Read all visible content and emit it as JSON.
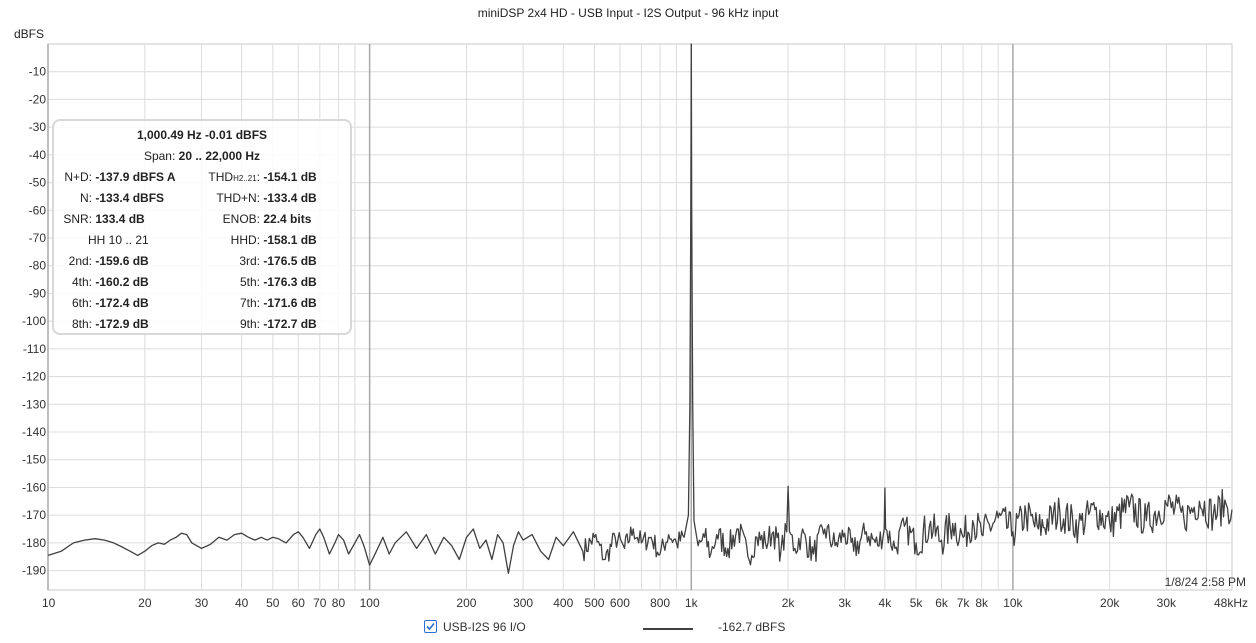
{
  "chart_data": {
    "type": "line",
    "title": "miniDSP 2x4 HD - USB Input - I2S Output - 96 kHz input",
    "ylabel": "dBFS",
    "xlabel": "",
    "x_scale": "log",
    "xlim": [
      10,
      48000
    ],
    "ylim": [
      -197,
      0
    ],
    "grid": true,
    "x_tick_labels": [
      {
        "v": 10,
        "t": "10"
      },
      {
        "v": 20,
        "t": "20"
      },
      {
        "v": 30,
        "t": "30"
      },
      {
        "v": 40,
        "t": "40"
      },
      {
        "v": 50,
        "t": "50"
      },
      {
        "v": 60,
        "t": "60"
      },
      {
        "v": 70,
        "t": "70"
      },
      {
        "v": 80,
        "t": "80"
      },
      {
        "v": 100,
        "t": "100"
      },
      {
        "v": 200,
        "t": "200"
      },
      {
        "v": 300,
        "t": "300"
      },
      {
        "v": 400,
        "t": "400"
      },
      {
        "v": 500,
        "t": "500"
      },
      {
        "v": 600,
        "t": "600"
      },
      {
        "v": 800,
        "t": "800"
      },
      {
        "v": 1000,
        "t": "1k"
      },
      {
        "v": 2000,
        "t": "2k"
      },
      {
        "v": 3000,
        "t": "3k"
      },
      {
        "v": 4000,
        "t": "4k"
      },
      {
        "v": 5000,
        "t": "5k"
      },
      {
        "v": 6000,
        "t": "6k"
      },
      {
        "v": 7000,
        "t": "7k"
      },
      {
        "v": 8000,
        "t": "8k"
      },
      {
        "v": 10000,
        "t": "10k"
      },
      {
        "v": 20000,
        "t": "20k"
      },
      {
        "v": 30000,
        "t": "30k"
      },
      {
        "v": 48000,
        "t": "48kHz"
      }
    ],
    "y_ticks": [
      -10,
      -20,
      -30,
      -40,
      -50,
      -60,
      -70,
      -80,
      -90,
      -100,
      -110,
      -120,
      -130,
      -140,
      -150,
      -160,
      -170,
      -180,
      -190
    ],
    "series": [
      {
        "name": "USB-I2S 96 I/O",
        "color": "#404040",
        "points": [
          [
            10,
            -184.5
          ],
          [
            11,
            -183
          ],
          [
            12,
            -180
          ],
          [
            13,
            -179
          ],
          [
            14,
            -178.5
          ],
          [
            15,
            -179
          ],
          [
            16,
            -180
          ],
          [
            17,
            -181.5
          ],
          [
            18,
            -183
          ],
          [
            19,
            -184.5
          ],
          [
            20,
            -183
          ],
          [
            21,
            -181
          ],
          [
            22,
            -180
          ],
          [
            23,
            -180.5
          ],
          [
            24,
            -179
          ],
          [
            25,
            -178
          ],
          [
            26,
            -176.5
          ],
          [
            27,
            -177
          ],
          [
            28,
            -180
          ],
          [
            29,
            -181
          ],
          [
            30,
            -182
          ],
          [
            32,
            -180.5
          ],
          [
            34,
            -178
          ],
          [
            36,
            -179
          ],
          [
            38,
            -177
          ],
          [
            40,
            -176.5
          ],
          [
            42,
            -178
          ],
          [
            44,
            -179
          ],
          [
            46,
            -178
          ],
          [
            48,
            -179
          ],
          [
            50,
            -178
          ],
          [
            52,
            -178.5
          ],
          [
            55,
            -180
          ],
          [
            58,
            -177
          ],
          [
            60,
            -176
          ],
          [
            62,
            -178
          ],
          [
            65,
            -182
          ],
          [
            68,
            -177
          ],
          [
            70,
            -175
          ],
          [
            72,
            -178
          ],
          [
            75,
            -184
          ],
          [
            78,
            -180
          ],
          [
            80,
            -177
          ],
          [
            83,
            -179
          ],
          [
            86,
            -184
          ],
          [
            90,
            -180
          ],
          [
            93,
            -177
          ],
          [
            96,
            -181
          ],
          [
            100,
            -188
          ],
          [
            105,
            -183
          ],
          [
            110,
            -178
          ],
          [
            115,
            -184
          ],
          [
            120,
            -180
          ],
          [
            130,
            -176
          ],
          [
            140,
            -182
          ],
          [
            150,
            -177
          ],
          [
            160,
            -184
          ],
          [
            170,
            -178
          ],
          [
            180,
            -181
          ],
          [
            190,
            -186
          ],
          [
            200,
            -178
          ],
          [
            210,
            -175
          ],
          [
            220,
            -182
          ],
          [
            230,
            -179
          ],
          [
            240,
            -186
          ],
          [
            250,
            -177
          ],
          [
            260,
            -180
          ],
          [
            270,
            -191
          ],
          [
            280,
            -181
          ],
          [
            290,
            -176
          ],
          [
            300,
            -179
          ],
          [
            320,
            -177
          ],
          [
            340,
            -183
          ],
          [
            360,
            -186
          ],
          [
            380,
            -178
          ],
          [
            400,
            -181
          ],
          [
            430,
            -176
          ],
          [
            460,
            -183
          ],
          [
            500,
            -178
          ],
          [
            540,
            -186
          ],
          [
            580,
            -178
          ],
          [
            620,
            -182
          ],
          [
            660,
            -175
          ],
          [
            700,
            -180
          ],
          [
            750,
            -178
          ],
          [
            800,
            -184
          ],
          [
            850,
            -177
          ],
          [
            900,
            -180
          ],
          [
            950,
            -178
          ],
          [
            980,
            -170
          ],
          [
            990,
            -130
          ],
          [
            997,
            -60
          ],
          [
            1000.49,
            -0.01
          ],
          [
            1003,
            -60
          ],
          [
            1010,
            -130
          ],
          [
            1020,
            -172
          ],
          [
            1050,
            -181
          ],
          [
            1100,
            -178
          ],
          [
            1150,
            -184
          ],
          [
            1200,
            -177
          ],
          [
            1300,
            -182
          ],
          [
            1400,
            -175
          ],
          [
            1500,
            -185
          ],
          [
            1600,
            -178
          ],
          [
            1700,
            -180
          ],
          [
            1800,
            -176
          ],
          [
            1900,
            -183
          ],
          [
            1980,
            -176
          ],
          [
            2000,
            -159.6
          ],
          [
            2020,
            -176
          ],
          [
            2100,
            -182
          ],
          [
            2200,
            -177
          ],
          [
            2400,
            -184
          ],
          [
            2600,
            -175
          ],
          [
            2800,
            -181
          ],
          [
            3000,
            -176.5
          ],
          [
            3200,
            -183
          ],
          [
            3500,
            -176
          ],
          [
            3800,
            -181
          ],
          [
            3980,
            -175
          ],
          [
            4000,
            -160.2
          ],
          [
            4020,
            -175
          ],
          [
            4300,
            -182
          ],
          [
            4600,
            -174
          ],
          [
            5000,
            -180
          ],
          [
            5500,
            -174
          ],
          [
            6000,
            -179
          ],
          [
            6500,
            -173
          ],
          [
            7000,
            -178
          ],
          [
            7500,
            -172
          ],
          [
            8000,
            -177
          ],
          [
            9000,
            -171
          ],
          [
            10000,
            -176
          ],
          [
            11000,
            -170
          ],
          [
            12000,
            -175
          ],
          [
            14000,
            -169
          ],
          [
            16000,
            -174
          ],
          [
            18000,
            -168
          ],
          [
            20000,
            -173
          ],
          [
            23000,
            -167
          ],
          [
            26000,
            -172
          ],
          [
            30000,
            -166
          ],
          [
            34000,
            -171
          ],
          [
            38000,
            -165
          ],
          [
            42000,
            -170
          ],
          [
            46000,
            -166
          ],
          [
            48000,
            -168
          ]
        ]
      }
    ]
  },
  "stats": {
    "line1": "1,000.49 Hz  -0.01 dBFS",
    "span_label": "Span:",
    "span_value": "20 .. 22,000 Hz",
    "rows": [
      {
        "l1": "N+D:",
        "v1": "-137.9 dBFS A",
        "l2": "THD",
        "l2sub": "H2..21",
        "l2end": ":",
        "v2": "-154.1 dB"
      },
      {
        "l1": "N:",
        "v1": "-133.4 dBFS",
        "l2": "THD+N:",
        "v2": "-133.4 dB"
      },
      {
        "l1": "SNR:",
        "v1": "133.4 dB",
        "l2": "ENOB:",
        "v2": "22.4 bits"
      },
      {
        "l1": "",
        "v1": "",
        "l2": "HHD:",
        "v2": "-158.1 dB"
      },
      {
        "l1": "2nd:",
        "v1": "-159.6 dB",
        "l2": "3rd:",
        "v2": "-176.5 dB"
      },
      {
        "l1": "4th:",
        "v1": "-160.2 dB",
        "l2": "5th:",
        "v2": "-176.3 dB"
      },
      {
        "l1": "6th:",
        "v1": "-172.4 dB",
        "l2": "7th:",
        "v2": "-171.6 dB"
      },
      {
        "l1": "8th:",
        "v1": "-172.9 dB",
        "l2": "9th:",
        "v2": "-172.7 dB"
      }
    ],
    "hh_range": "HH 10 .. 21"
  },
  "timestamp": "1/8/24 2:58 PM",
  "legend": {
    "series_name": "USB-I2S 96 I/O",
    "checked": true,
    "cursor_value": "-162.7 dBFS"
  }
}
